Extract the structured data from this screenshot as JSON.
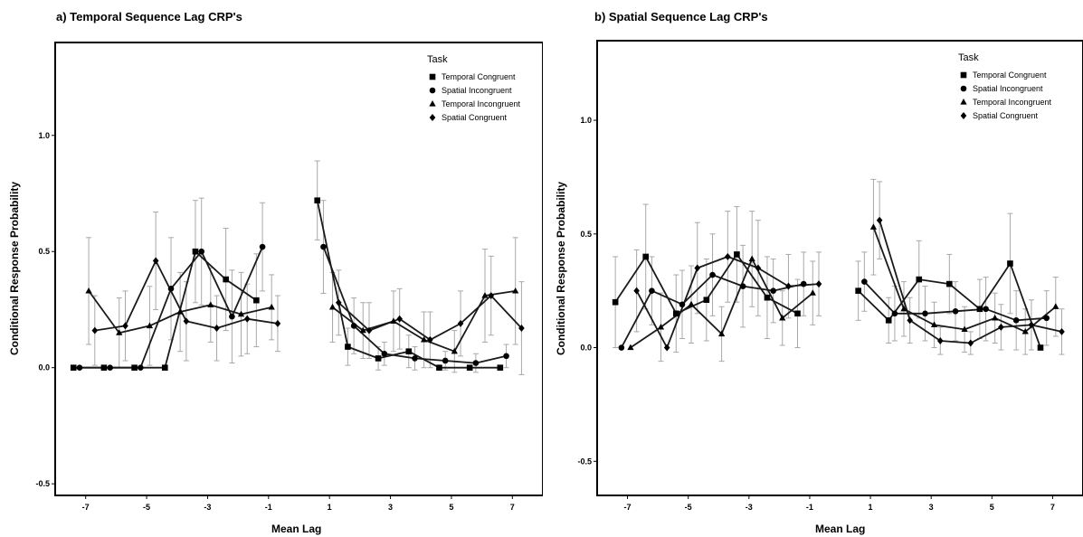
{
  "chart_data": [
    {
      "type": "line",
      "title": "a) Temporal Sequence Lag CRP's",
      "xlabel": "Mean Lag",
      "ylabel": "Conditional Response Probability",
      "xlim": [
        -8,
        8
      ],
      "ylim": [
        -0.55,
        1.4
      ],
      "xticks": [
        -7,
        -5,
        -3,
        -1,
        1,
        3,
        5,
        7
      ],
      "yticks": [
        -0.5,
        0.0,
        0.5,
        1.0
      ],
      "xtick_labels": [
        "-7",
        "-5",
        "-3",
        "-1",
        "1",
        "3",
        "5",
        "7"
      ],
      "ytick_labels": [
        "-0.5",
        "0.0",
        "0.5",
        "1.0"
      ],
      "grid": false,
      "legend": {
        "title": "Task",
        "placement": "top-right",
        "entries": [
          "Temporal Congruent",
          "Spatial Incongruent",
          "Temporal Incongruent",
          "Spatial Congruent"
        ]
      },
      "series": [
        {
          "name": "Temporal Congruent",
          "marker": "square",
          "x": [
            -7.4,
            -6.4,
            -5.4,
            -4.4,
            -3.4,
            -2.4,
            -1.4,
            0.6,
            1.6,
            2.6,
            3.6,
            4.6,
            5.6,
            6.6
          ],
          "y": [
            0.0,
            0.0,
            0.0,
            0.0,
            0.5,
            0.38,
            0.29,
            0.72,
            0.09,
            0.04,
            0.07,
            0.0,
            0.0,
            0.0
          ],
          "err": [
            0.0,
            0.0,
            0.0,
            0.0,
            0.22,
            0.22,
            0.2,
            0.17,
            0.08,
            0.05,
            0.07,
            0.0,
            0.0,
            0.0
          ]
        },
        {
          "name": "Spatial Incongruent",
          "marker": "circle",
          "x": [
            -7.2,
            -6.2,
            -5.2,
            -4.2,
            -3.2,
            -2.2,
            -1.2,
            0.8,
            1.8,
            2.8,
            3.8,
            4.8,
            5.8,
            6.8
          ],
          "y": [
            0.0,
            0.0,
            0.0,
            0.34,
            0.5,
            0.22,
            0.52,
            0.52,
            0.18,
            0.06,
            0.04,
            0.03,
            0.02,
            0.05
          ],
          "err": [
            0.0,
            0.0,
            0.0,
            0.22,
            0.23,
            0.2,
            0.19,
            0.2,
            0.12,
            0.05,
            0.05,
            0.04,
            0.04,
            0.05
          ]
        },
        {
          "name": "Temporal Incongruent",
          "marker": "triangle",
          "x": [
            -6.9,
            -5.9,
            -4.9,
            -3.9,
            -2.9,
            -1.9,
            -0.9,
            1.1,
            2.1,
            3.1,
            4.1,
            5.1,
            6.1,
            7.1
          ],
          "y": [
            0.33,
            0.15,
            0.18,
            0.24,
            0.27,
            0.23,
            0.26,
            0.26,
            0.16,
            0.2,
            0.12,
            0.07,
            0.31,
            0.33
          ],
          "err": [
            0.23,
            0.15,
            0.17,
            0.17,
            0.16,
            0.18,
            0.14,
            0.15,
            0.12,
            0.13,
            0.12,
            0.09,
            0.2,
            0.23
          ]
        },
        {
          "name": "Spatial Congruent",
          "marker": "diamond",
          "x": [
            -6.7,
            -5.7,
            -4.7,
            -3.7,
            -2.7,
            -1.7,
            -0.7,
            1.3,
            2.3,
            3.3,
            4.3,
            5.3,
            6.3,
            7.3
          ],
          "y": [
            0.16,
            0.18,
            0.46,
            0.2,
            0.17,
            0.21,
            0.19,
            0.28,
            0.16,
            0.21,
            0.12,
            0.19,
            0.31,
            0.17
          ],
          "err": [
            0.15,
            0.15,
            0.21,
            0.17,
            0.14,
            0.15,
            0.12,
            0.14,
            0.12,
            0.13,
            0.12,
            0.14,
            0.17,
            0.2
          ]
        }
      ]
    },
    {
      "type": "line",
      "title": "b) Spatial Sequence Lag CRP's",
      "xlabel": "Mean Lag",
      "ylabel": "Conditional Response Probability",
      "xlim": [
        -8,
        8
      ],
      "ylim": [
        -0.65,
        1.35
      ],
      "xticks": [
        -7,
        -5,
        -3,
        -1,
        1,
        3,
        5,
        7
      ],
      "yticks": [
        -0.5,
        0.0,
        0.5,
        1.0
      ],
      "xtick_labels": [
        "-7",
        "-5",
        "-3",
        "-1",
        "1",
        "3",
        "5",
        "7"
      ],
      "ytick_labels": [
        "-0.5",
        "0.0",
        "0.5",
        "1.0"
      ],
      "grid": false,
      "legend": {
        "title": "Task",
        "placement": "top-right",
        "entries": [
          "Temporal Congruent",
          "Spatial Incongruent",
          "Temporal Incongruent",
          "Spatial Congruent"
        ]
      },
      "series": [
        {
          "name": "Temporal Congruent",
          "marker": "square",
          "x": [
            -7.4,
            -6.4,
            -5.4,
            -4.4,
            -3.4,
            -2.4,
            -1.4,
            0.6,
            1.6,
            2.6,
            3.6,
            4.6,
            5.6,
            6.6
          ],
          "y": [
            0.2,
            0.4,
            0.15,
            0.21,
            0.41,
            0.22,
            0.15,
            0.25,
            0.12,
            0.3,
            0.28,
            0.17,
            0.37,
            0.0
          ],
          "err": [
            0.2,
            0.23,
            0.17,
            0.18,
            0.21,
            0.18,
            0.15,
            0.13,
            0.1,
            0.17,
            0.13,
            0.13,
            0.22,
            0.0
          ]
        },
        {
          "name": "Spatial Incongruent",
          "marker": "circle",
          "x": [
            -7.2,
            -6.2,
            -5.2,
            -4.2,
            -3.2,
            -2.2,
            -1.2,
            0.8,
            1.8,
            2.8,
            3.8,
            4.8,
            5.8,
            6.8
          ],
          "y": [
            0.0,
            0.25,
            0.19,
            0.32,
            0.27,
            0.25,
            0.28,
            0.29,
            0.15,
            0.15,
            0.16,
            0.17,
            0.12,
            0.13
          ],
          "err": [
            0.0,
            0.15,
            0.15,
            0.18,
            0.18,
            0.14,
            0.14,
            0.13,
            0.12,
            0.12,
            0.13,
            0.14,
            0.13,
            0.12
          ]
        },
        {
          "name": "Temporal Incongruent",
          "marker": "triangle",
          "x": [
            -6.9,
            -5.9,
            -4.9,
            -3.9,
            -2.9,
            -1.9,
            -0.9,
            1.1,
            2.1,
            3.1,
            4.1,
            5.1,
            6.1,
            7.1
          ],
          "y": [
            0.0,
            0.09,
            0.19,
            0.06,
            0.39,
            0.13,
            0.24,
            0.53,
            0.17,
            0.1,
            0.08,
            0.13,
            0.07,
            0.18
          ],
          "err": [
            0.0,
            0.15,
            0.17,
            0.12,
            0.21,
            0.12,
            0.14,
            0.21,
            0.12,
            0.1,
            0.1,
            0.11,
            0.1,
            0.13
          ]
        },
        {
          "name": "Spatial Congruent",
          "marker": "diamond",
          "x": [
            -6.7,
            -5.7,
            -4.7,
            -3.7,
            -2.7,
            -1.7,
            -0.7,
            1.3,
            2.3,
            3.3,
            4.3,
            5.3,
            6.3,
            7.3
          ],
          "y": [
            0.25,
            0.0,
            0.35,
            0.4,
            0.35,
            0.27,
            0.28,
            0.56,
            0.12,
            0.03,
            0.02,
            0.09,
            0.1,
            0.07
          ],
          "err": [
            0.18,
            0.0,
            0.2,
            0.2,
            0.21,
            0.14,
            0.14,
            0.17,
            0.1,
            0.06,
            0.05,
            0.1,
            0.11,
            0.1
          ]
        }
      ]
    }
  ]
}
